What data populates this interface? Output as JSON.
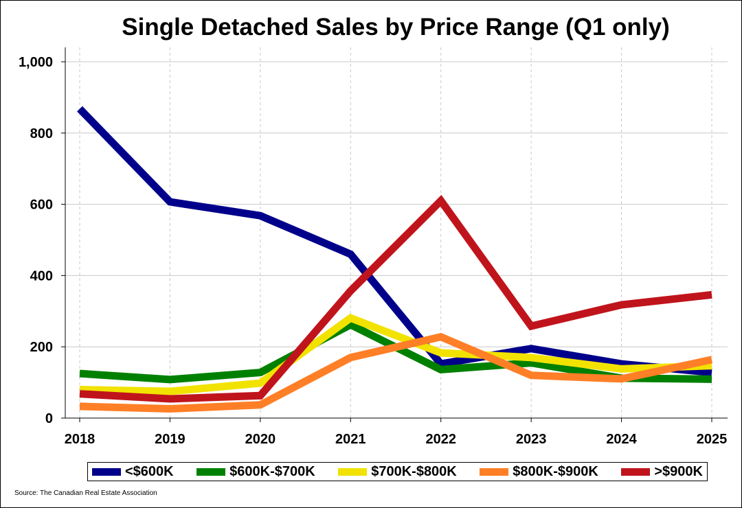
{
  "chart_data": {
    "type": "line",
    "title": "Single Detached Sales by Price Range (Q1 only)",
    "xlabel": "",
    "ylabel": "",
    "x": [
      "2018",
      "2019",
      "2020",
      "2021",
      "2022",
      "2023",
      "2024",
      "2025"
    ],
    "ylim": [
      0,
      1000
    ],
    "yticks": [
      0,
      200,
      400,
      600,
      800,
      1000
    ],
    "ytick_labels": [
      "0",
      "200",
      "400",
      "600",
      "800",
      "1,000"
    ],
    "grid": "horizontal solid, vertical dashed",
    "legend_position": "bottom",
    "series": [
      {
        "name": "<$600K",
        "color": "#00008b",
        "values": [
          868,
          607,
          568,
          460,
          152,
          195,
          152,
          128
        ]
      },
      {
        "name": "$600K-$700K",
        "color": "#008000",
        "values": [
          125,
          108,
          128,
          262,
          136,
          155,
          112,
          109
        ]
      },
      {
        "name": "$700K-$800K",
        "color": "#f2e200",
        "values": [
          80,
          75,
          98,
          281,
          183,
          170,
          138,
          147
        ]
      },
      {
        "name": "$800K-$900K",
        "color": "#ff7f27",
        "values": [
          33,
          26,
          37,
          170,
          228,
          120,
          110,
          164
        ]
      },
      {
        "name": ">$900K",
        "color": "#c0141c",
        "values": [
          68,
          54,
          63,
          357,
          610,
          258,
          318,
          346
        ]
      }
    ]
  },
  "source": "Source: The Canadian Real Estate Association"
}
